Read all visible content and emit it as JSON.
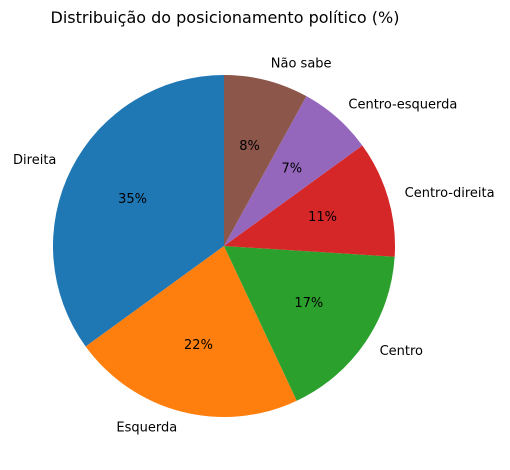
{
  "chart_data": {
    "type": "pie",
    "title": "Distribuição do posicionamento político (%)",
    "start_angle_deg": 90,
    "direction": "counterclockwise",
    "slices": [
      {
        "label": "Direita",
        "value": 35,
        "pct_label": "35%",
        "color": "#1f77b4"
      },
      {
        "label": "Esquerda",
        "value": 22,
        "pct_label": "22%",
        "color": "#ff7f0e"
      },
      {
        "label": "Centro",
        "value": 17,
        "pct_label": "17%",
        "color": "#2ca02c"
      },
      {
        "label": "Centro-direita",
        "value": 11,
        "pct_label": "11%",
        "color": "#d62728"
      },
      {
        "label": "Centro-esquerda",
        "value": 7,
        "pct_label": "7%",
        "color": "#9467bd"
      },
      {
        "label": "Não sabe",
        "value": 8,
        "pct_label": "8%",
        "color": "#8c564b"
      }
    ]
  }
}
